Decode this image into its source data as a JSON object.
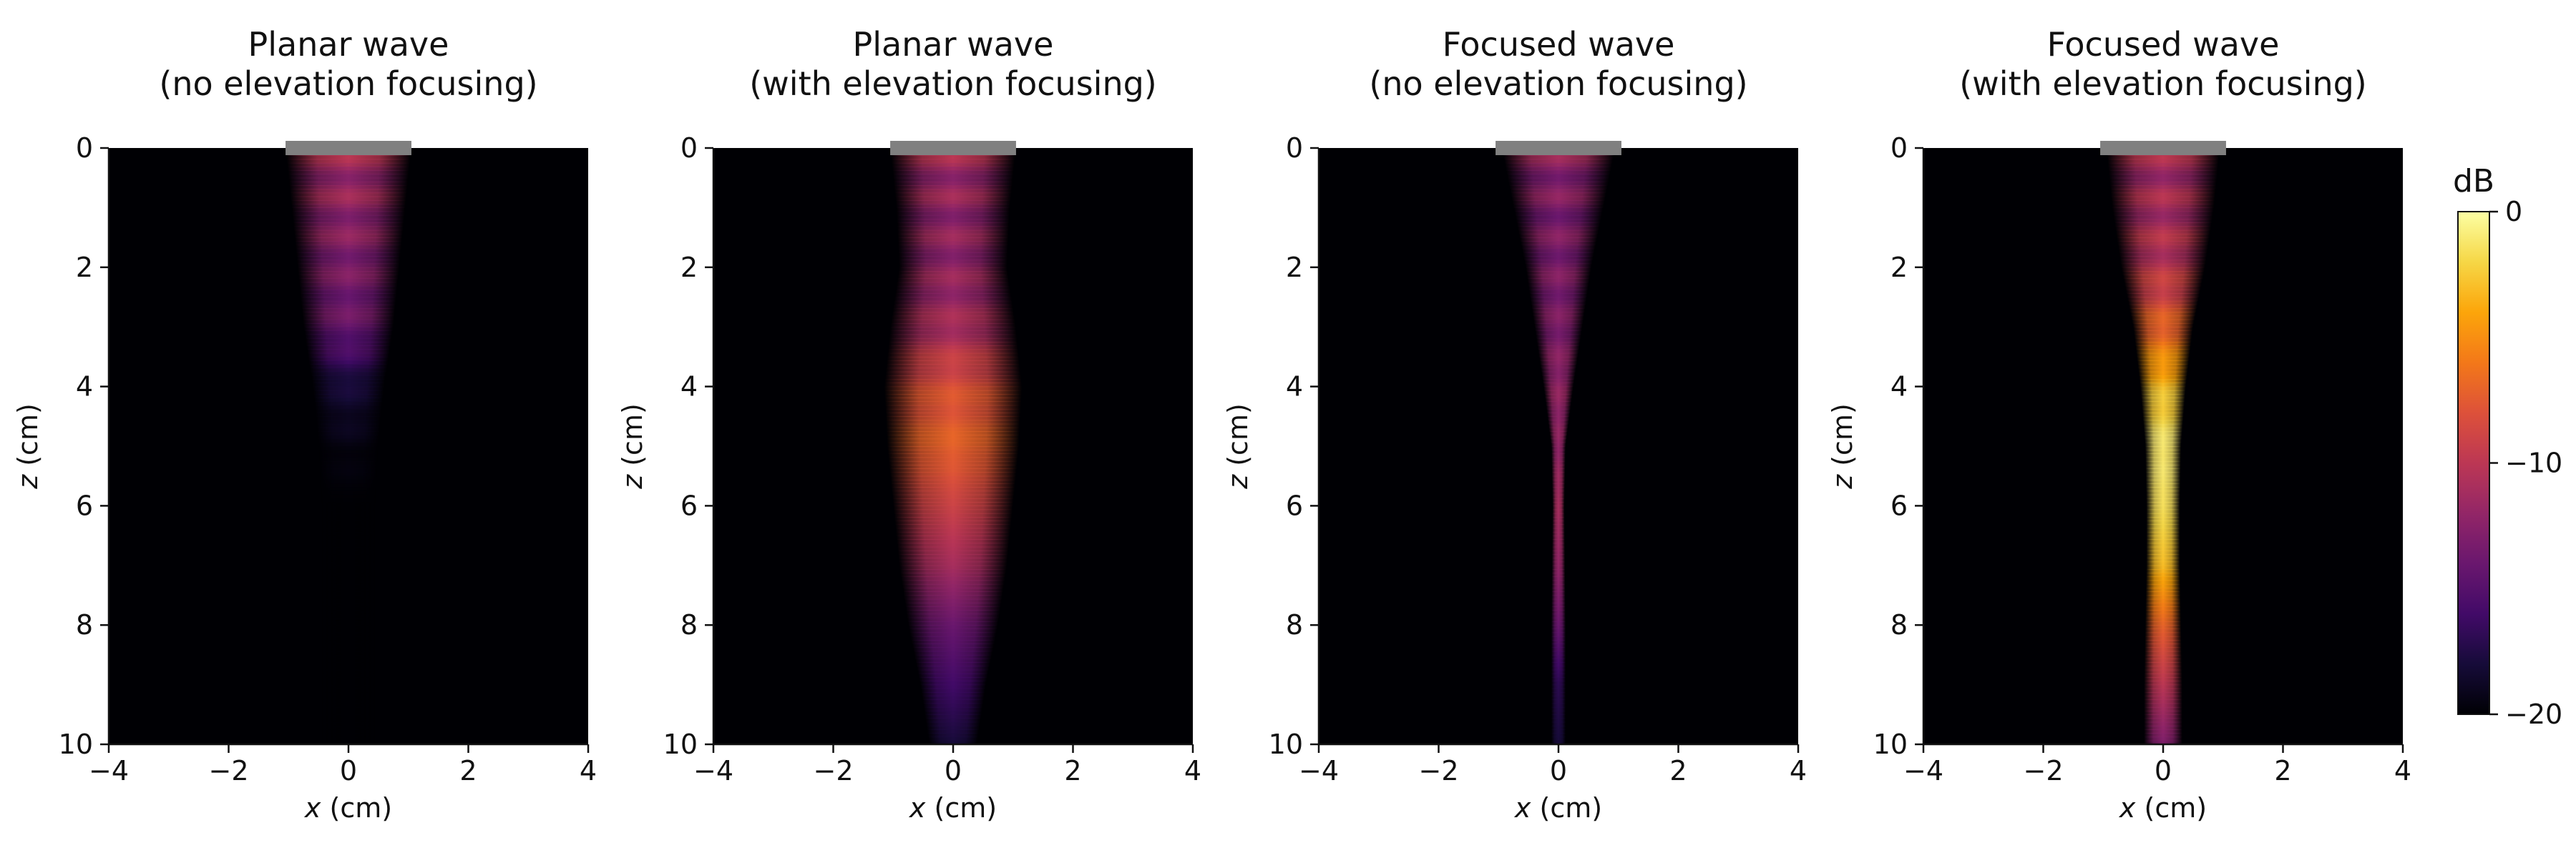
{
  "chart_data": [
    {
      "type": "heatmap",
      "title_line1": "Planar wave",
      "title_line2": "(no elevation focusing)",
      "xlabel_var": "x",
      "xlabel_unit": " (cm)",
      "ylabel_var": "z",
      "ylabel_unit": " (cm)",
      "xlim": [
        -4,
        4
      ],
      "ylim": [
        10,
        0
      ],
      "x_ticks": [
        -4,
        -2,
        0,
        2,
        4
      ],
      "x_tick_labels": [
        "−4",
        "−2",
        "0",
        "2",
        "4"
      ],
      "y_ticks": [
        0,
        2,
        4,
        6,
        8,
        10
      ],
      "y_tick_labels": [
        "0",
        "2",
        "4",
        "6",
        "8",
        "10"
      ],
      "transducer": {
        "x_range": [
          -1.05,
          1.05
        ],
        "z": 0,
        "color": "#808080"
      },
      "beam": {
        "profile": [
          [
            0,
            1.05
          ],
          [
            1,
            0.95
          ],
          [
            2,
            0.85
          ],
          [
            3,
            0.75
          ],
          [
            4,
            0.6
          ],
          [
            5,
            0.5
          ],
          [
            6,
            0.45
          ],
          [
            7,
            0.45
          ],
          [
            8,
            0.45
          ],
          [
            9,
            0.45
          ],
          [
            10,
            0.45
          ]
        ],
        "intensity_db": [
          [
            0,
            -11
          ],
          [
            1,
            -12
          ],
          [
            2,
            -13
          ],
          [
            3,
            -14
          ],
          [
            4,
            -18
          ],
          [
            5,
            -19.5
          ],
          [
            6,
            -20
          ],
          [
            10,
            -20
          ]
        ]
      }
    },
    {
      "type": "heatmap",
      "title_line1": "Planar wave",
      "title_line2": "(with elevation focusing)",
      "xlabel_var": "x",
      "xlabel_unit": " (cm)",
      "ylabel_var": "z",
      "ylabel_unit": " (cm)",
      "xlim": [
        -4,
        4
      ],
      "ylim": [
        10,
        0
      ],
      "x_ticks": [
        -4,
        -2,
        0,
        2,
        4
      ],
      "x_tick_labels": [
        "−4",
        "−2",
        "0",
        "2",
        "4"
      ],
      "y_ticks": [
        0,
        2,
        4,
        6,
        8,
        10
      ],
      "y_tick_labels": [
        "0",
        "2",
        "4",
        "6",
        "8",
        "10"
      ],
      "transducer": {
        "x_range": [
          -1.05,
          1.05
        ],
        "z": 0,
        "color": "#808080"
      },
      "beam": {
        "profile": [
          [
            0,
            1.05
          ],
          [
            1,
            0.95
          ],
          [
            2,
            0.9
          ],
          [
            3,
            1.05
          ],
          [
            4,
            1.15
          ],
          [
            5,
            1.1
          ],
          [
            6,
            1.0
          ],
          [
            7,
            0.9
          ],
          [
            8,
            0.75
          ],
          [
            9,
            0.55
          ],
          [
            10,
            0.4
          ]
        ],
        "intensity_db": [
          [
            0,
            -11
          ],
          [
            1,
            -12
          ],
          [
            2,
            -12
          ],
          [
            3,
            -11
          ],
          [
            4,
            -8
          ],
          [
            5,
            -7
          ],
          [
            6,
            -9
          ],
          [
            7,
            -11
          ],
          [
            8,
            -14
          ],
          [
            9,
            -16
          ],
          [
            10,
            -18
          ]
        ]
      }
    },
    {
      "type": "heatmap",
      "title_line1": "Focused wave",
      "title_line2": "(no elevation focusing)",
      "xlabel_var": "x",
      "xlabel_unit": " (cm)",
      "ylabel_var": "z",
      "ylabel_unit": " (cm)",
      "xlim": [
        -4,
        4
      ],
      "ylim": [
        10,
        0
      ],
      "x_ticks": [
        -4,
        -2,
        0,
        2,
        4
      ],
      "x_tick_labels": [
        "−4",
        "−2",
        "0",
        "2",
        "4"
      ],
      "y_ticks": [
        0,
        2,
        4,
        6,
        8,
        10
      ],
      "y_tick_labels": [
        "0",
        "2",
        "4",
        "6",
        "8",
        "10"
      ],
      "transducer": {
        "x_range": [
          -1.05,
          1.05
        ],
        "z": 0,
        "color": "#808080"
      },
      "beam": {
        "profile": [
          [
            0,
            0.95
          ],
          [
            1,
            0.75
          ],
          [
            2,
            0.55
          ],
          [
            3,
            0.4
          ],
          [
            4,
            0.25
          ],
          [
            5,
            0.12
          ],
          [
            6,
            0.1
          ],
          [
            7,
            0.11
          ],
          [
            8,
            0.12
          ],
          [
            9,
            0.12
          ],
          [
            10,
            0.12
          ]
        ],
        "intensity_db": [
          [
            0,
            -12
          ],
          [
            1,
            -13
          ],
          [
            2,
            -13
          ],
          [
            3,
            -13
          ],
          [
            4,
            -12
          ],
          [
            5,
            -12
          ],
          [
            6,
            -11
          ],
          [
            7,
            -12
          ],
          [
            8,
            -14
          ],
          [
            9,
            -17
          ],
          [
            10,
            -18
          ]
        ]
      }
    },
    {
      "type": "heatmap",
      "title_line1": "Focused wave",
      "title_line2": "(with elevation focusing)",
      "xlabel_var": "x",
      "xlabel_unit": " (cm)",
      "ylabel_var": "z",
      "ylabel_unit": " (cm)",
      "xlim": [
        -4,
        4
      ],
      "ylim": [
        10,
        0
      ],
      "x_ticks": [
        -4,
        -2,
        0,
        2,
        4
      ],
      "x_tick_labels": [
        "−4",
        "−2",
        "0",
        "2",
        "4"
      ],
      "y_ticks": [
        0,
        2,
        4,
        6,
        8,
        10
      ],
      "y_tick_labels": [
        "0",
        "2",
        "4",
        "6",
        "8",
        "10"
      ],
      "transducer": {
        "x_range": [
          -1.05,
          1.05
        ],
        "z": 0,
        "color": "#808080"
      },
      "beam": {
        "profile": [
          [
            0,
            0.95
          ],
          [
            1,
            0.85
          ],
          [
            2,
            0.7
          ],
          [
            3,
            0.5
          ],
          [
            4,
            0.38
          ],
          [
            5,
            0.3
          ],
          [
            6,
            0.28
          ],
          [
            7,
            0.28
          ],
          [
            8,
            0.3
          ],
          [
            9,
            0.32
          ],
          [
            10,
            0.32
          ]
        ],
        "intensity_db": [
          [
            0,
            -11
          ],
          [
            1,
            -11
          ],
          [
            2,
            -10
          ],
          [
            3,
            -7
          ],
          [
            4,
            -3
          ],
          [
            5,
            -1
          ],
          [
            6,
            -1.5
          ],
          [
            7,
            -3
          ],
          [
            8,
            -7
          ],
          [
            9,
            -10
          ],
          [
            10,
            -13
          ]
        ]
      }
    }
  ],
  "colorbar": {
    "label": "dB",
    "range": [
      -20,
      0
    ],
    "ticks": [
      0,
      -10,
      -20
    ],
    "tick_labels": [
      "0",
      "−10",
      "−20"
    ],
    "colormap": "inferno"
  }
}
